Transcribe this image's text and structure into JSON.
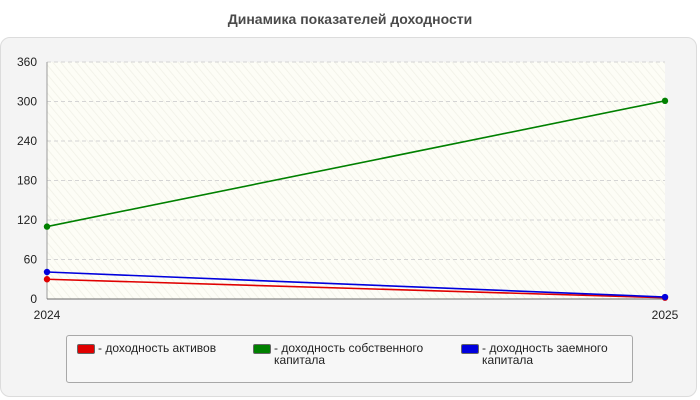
{
  "chart_data": {
    "type": "line",
    "title": "Динамика показателей доходности",
    "x": [
      "2024",
      "2025"
    ],
    "ylim": [
      0,
      360
    ],
    "yticks": [
      0,
      60,
      120,
      180,
      240,
      300,
      360
    ],
    "grid": true,
    "legend_position": "bottom",
    "series": [
      {
        "name": "- доходность активов",
        "color": "#e00000",
        "values": [
          30,
          2
        ]
      },
      {
        "name": "- доходность собственного капитала",
        "color": "#008000",
        "values": [
          110,
          301
        ]
      },
      {
        "name": "- доходность заемного капитала",
        "color": "#0000dd",
        "values": [
          41,
          3
        ]
      }
    ]
  }
}
